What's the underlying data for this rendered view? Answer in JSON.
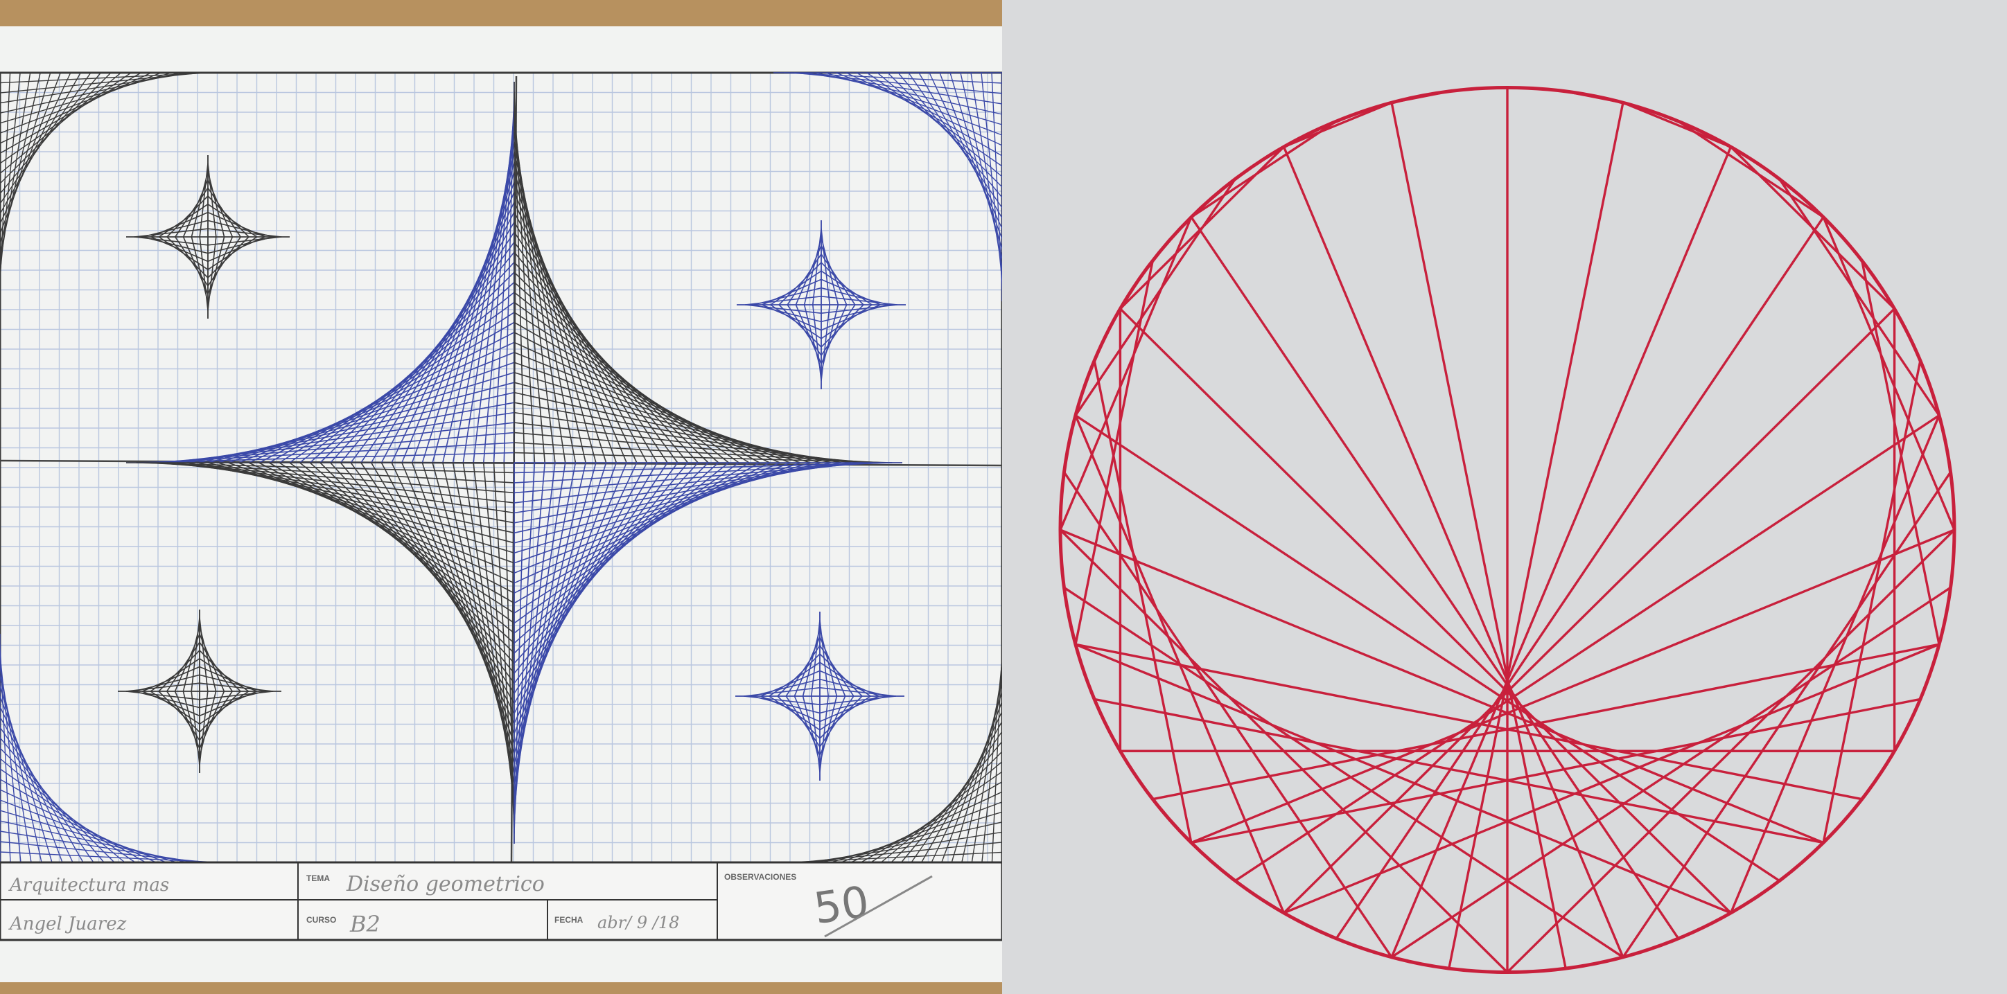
{
  "left_photo": {
    "colors": {
      "paper": "#f2f3f2",
      "grid": "#b9c6df",
      "ink_black": "#3a3a3a",
      "ink_blue": "#3b49a8",
      "table_bg": "#b89463"
    },
    "title_block": {
      "fields": [
        {
          "label": "",
          "value": "Arquitectura mas"
        },
        {
          "label": "",
          "value": "Angel Juarez"
        },
        {
          "label": "TEMA",
          "value": "Diseño geometrico"
        },
        {
          "label": "CURSO",
          "value": "B2"
        },
        {
          "label": "FECHA",
          "value": "abr/ 9 /18"
        },
        {
          "label": "OBSERVACIONES",
          "value": ""
        }
      ],
      "grade": "50"
    }
  },
  "right_photo": {
    "colors": {
      "background": "#d9dadc",
      "thread": "#c8203c"
    },
    "nail_count": 48
  }
}
